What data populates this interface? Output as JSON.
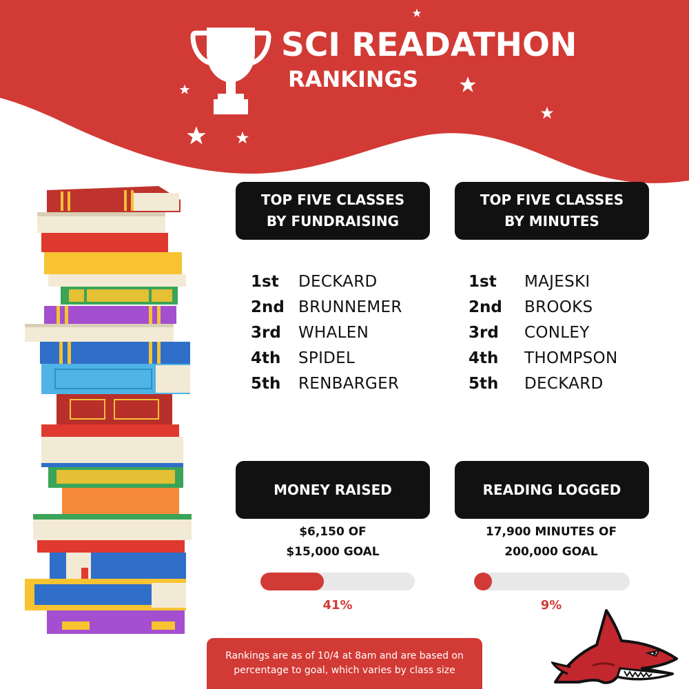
{
  "header": {
    "title": "SCI READATHON",
    "subtitle": "RANKINGS"
  },
  "colors": {
    "brand_red": "#d23a35",
    "panel_black": "#111111",
    "bar_track": "#e8e8e8"
  },
  "icons": [
    "trophy-icon",
    "star-icon",
    "book-stack-illustration",
    "shark-mascot"
  ],
  "fundraising": {
    "heading_line1": "TOP FIVE CLASSES",
    "heading_line2": "BY FUNDRAISING",
    "rankings": [
      {
        "position": "1st",
        "name": "DECKARD"
      },
      {
        "position": "2nd",
        "name": "BRUNNEMER"
      },
      {
        "position": "3rd",
        "name": "WHALEN"
      },
      {
        "position": "4th",
        "name": "SPIDEL"
      },
      {
        "position": "5th",
        "name": "RENBARGER"
      }
    ]
  },
  "minutes": {
    "heading_line1": "TOP FIVE CLASSES",
    "heading_line2": "BY MINUTES",
    "rankings": [
      {
        "position": "1st",
        "name": "MAJESKI"
      },
      {
        "position": "2nd",
        "name": "BROOKS"
      },
      {
        "position": "3rd",
        "name": "CONLEY"
      },
      {
        "position": "4th",
        "name": "THOMPSON"
      },
      {
        "position": "5th",
        "name": "DECKARD"
      }
    ]
  },
  "money": {
    "heading": "MONEY RAISED",
    "line1": "$6,150 OF",
    "line2": "$15,000 GOAL",
    "progress": 0.41,
    "percent_label": "41%"
  },
  "reading": {
    "heading": "READING LOGGED",
    "line1": "17,900 MINUTES OF",
    "line2": "200,000 GOAL",
    "progress": 0.09,
    "percent_label": "9%"
  },
  "footnote": {
    "line1": "Rankings are as of 10/4 at 8am and are based on",
    "line2": "percentage to goal, which varies by class size"
  }
}
